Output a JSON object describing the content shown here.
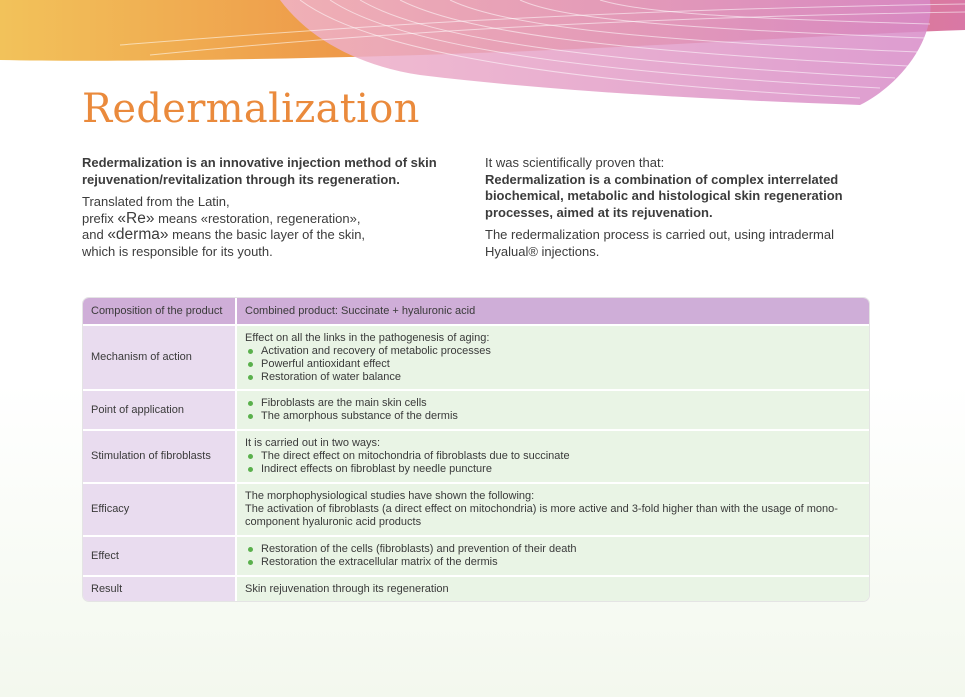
{
  "title": "Redermalization",
  "left_column": {
    "intro_bold": "Redermalization is an innovative injection method of skin rejuvenation/revitalization through its regeneration.",
    "line1": "Translated from the Latin,",
    "line2_pre": "prefix ",
    "line2_term": "«Re»",
    "line2_post": " means «restoration, regeneration»,",
    "line3_pre": "and ",
    "line3_term": "«derma»",
    "line3_post": " means the basic layer of the skin,",
    "line4": "which is responsible for its youth."
  },
  "right_column": {
    "proof_intro": "It was scientifically proven that:",
    "proof_bold": "Redermalization is a combination of complex interrelated biochemical, metabolic and histological skin regeneration processes, aimed at its rejuvenation.",
    "process_text": "The redermalization process is carried out, using intradermal Hyalual® injections."
  },
  "table": {
    "header": {
      "label": "Composition of the product",
      "value": "Combined product: Succinate + hyaluronic acid"
    },
    "rows": [
      {
        "label": "Mechanism of action",
        "intro": "Effect on all the links in the pathogenesis of aging:",
        "bullets": [
          "Activation and recovery of metabolic processes",
          "Powerful antioxidant effect",
          "Restoration of water balance"
        ]
      },
      {
        "label": "Point of application",
        "bullets": [
          "Fibroblasts are the main skin cells",
          "The amorphous substance of the dermis"
        ]
      },
      {
        "label": "Stimulation of fibroblasts",
        "intro": "It is carried out in two ways:",
        "bullets": [
          "The direct effect on mitochondria of fibroblasts due to succinate",
          "Indirect effects on fibroblast by needle puncture"
        ]
      },
      {
        "label": "Efficacy",
        "intro": "The morphophysiological studies have shown the following:",
        "text": "The activation of fibroblasts (a direct effect on mitochondria) is more active and 3-fold higher than with the usage of mono-component hyaluronic acid products"
      },
      {
        "label": "Effect",
        "bullets": [
          "Restoration of the cells (fibroblasts) and prevention of their death",
          "Restoration the extracellular matrix of the dermis"
        ]
      },
      {
        "label": "Result",
        "text": "Skin rejuvenation through its regeneration"
      }
    ]
  },
  "colors": {
    "title_orange": "#ea8a3c",
    "label_purple": "#e9dcef",
    "header_purple": "#cfaed8",
    "value_green": "#e9f4e5",
    "bullet_green": "#5ab04c"
  }
}
